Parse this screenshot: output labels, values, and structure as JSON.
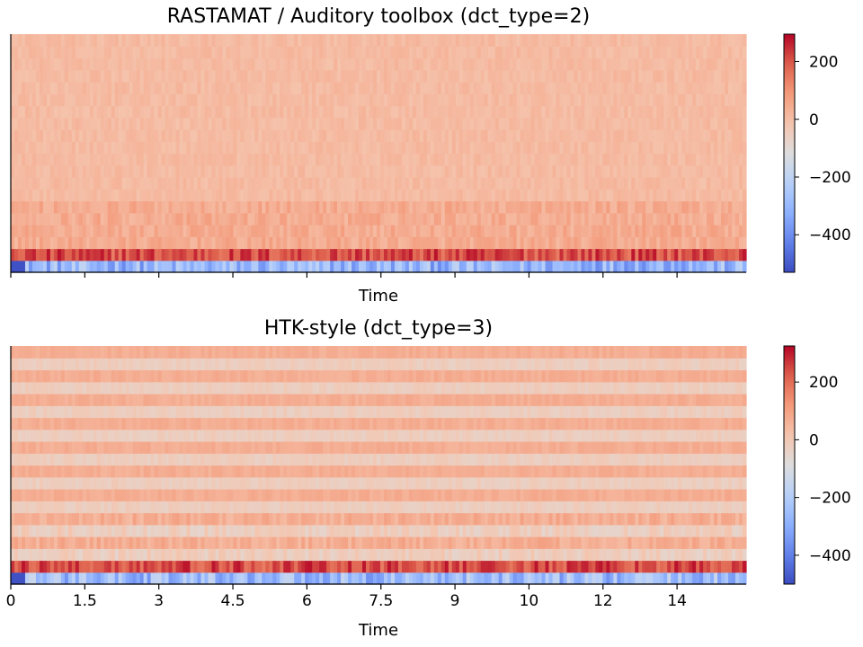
{
  "chart_data": [
    {
      "type": "heatmap",
      "title": "RASTAMAT / Auditory toolbox (dct_type=2)",
      "xlabel": "Time",
      "ylabel": "",
      "x_range": [
        0,
        14.9
      ],
      "x_tick_labels_shown": false,
      "x_ticks": [
        0,
        1.5,
        3,
        4.5,
        6,
        7.5,
        9,
        10.5,
        12,
        13.5
      ],
      "y_ticks_shown": false,
      "n_coefficients": 20,
      "colormap": "coolwarm",
      "colorbar": {
        "range": [
          -530,
          295
        ],
        "ticks": [
          200,
          0,
          -200,
          -400
        ],
        "tick_labels": [
          "200",
          "0",
          "−200",
          "−400"
        ]
      },
      "row_profile": {
        "coefficient_0_mean": -300,
        "coefficient_1_mean": 210,
        "coefficients_2_to_5_mean": 45,
        "coefficients_6_to_19_mean": 8
      }
    },
    {
      "type": "heatmap",
      "title": "HTK-style (dct_type=3)",
      "xlabel": "Time",
      "ylabel": "",
      "x_range": [
        0,
        14.9
      ],
      "x_tick_labels_shown": true,
      "x_ticks": [
        0,
        1.5,
        3,
        4.5,
        6,
        7.5,
        9,
        10.5,
        12,
        13.5
      ],
      "x_tick_labels": [
        "0",
        "1.5",
        "3",
        "4.5",
        "6",
        "7.5",
        "9",
        "10",
        "12",
        "14"
      ],
      "y_ticks_shown": false,
      "n_coefficients": 20,
      "colormap": "coolwarm",
      "colorbar": {
        "range": [
          -500,
          325
        ],
        "ticks": [
          200,
          0,
          -200,
          -400
        ],
        "tick_labels": [
          "200",
          "0",
          "−200",
          "−400"
        ]
      },
      "row_profile": {
        "coefficient_0_mean": -250,
        "coefficient_1_mean": 240,
        "odd_coefficients_mean": 70,
        "even_coefficients_mean": -20
      }
    }
  ]
}
